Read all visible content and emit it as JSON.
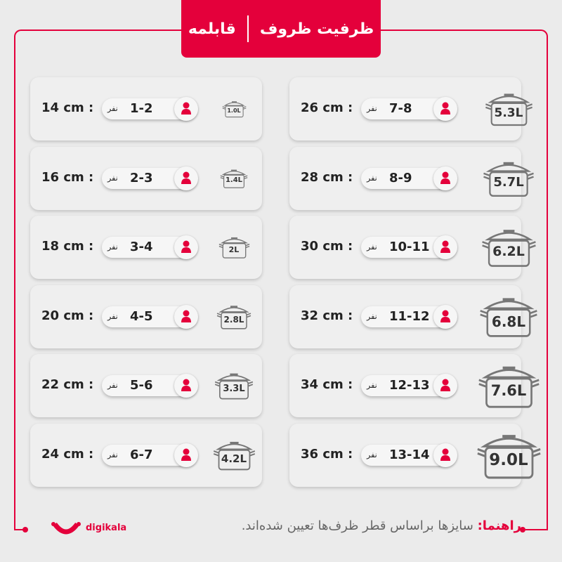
{
  "header": {
    "title": "ظرفیت ظروف",
    "subtitle": "قابلمه"
  },
  "unit_label": "نفر",
  "left": [
    {
      "size": "14 cm :",
      "people": "1-2",
      "volume": "1.0L"
    },
    {
      "size": "16 cm :",
      "people": "2-3",
      "volume": "1.4L"
    },
    {
      "size": "18 cm :",
      "people": "3-4",
      "volume": "2L"
    },
    {
      "size": "20 cm :",
      "people": "4-5",
      "volume": "2.8L"
    },
    {
      "size": "22 cm :",
      "people": "5-6",
      "volume": "3.3L"
    },
    {
      "size": "24 cm :",
      "people": "6-7",
      "volume": "4.2L"
    }
  ],
  "right": [
    {
      "size": "26 cm :",
      "people": "7-8",
      "volume": "5.3L"
    },
    {
      "size": "28 cm :",
      "people": "8-9",
      "volume": "5.7L"
    },
    {
      "size": "30 cm :",
      "people": "10-11",
      "volume": "6.2L"
    },
    {
      "size": "32 cm :",
      "people": "11-12",
      "volume": "6.8L"
    },
    {
      "size": "34 cm :",
      "people": "12-13",
      "volume": "7.6L"
    },
    {
      "size": "36 cm :",
      "people": "13-14",
      "volume": "9.0L"
    }
  ],
  "footer": {
    "note_label": "راهنما:",
    "note_text": " سایزها براساس قطر ظرف‌ها تعیین شده‌اند.",
    "brand": "digikala"
  },
  "colors": {
    "accent": "#e4003b",
    "background": "#ebebeb"
  }
}
